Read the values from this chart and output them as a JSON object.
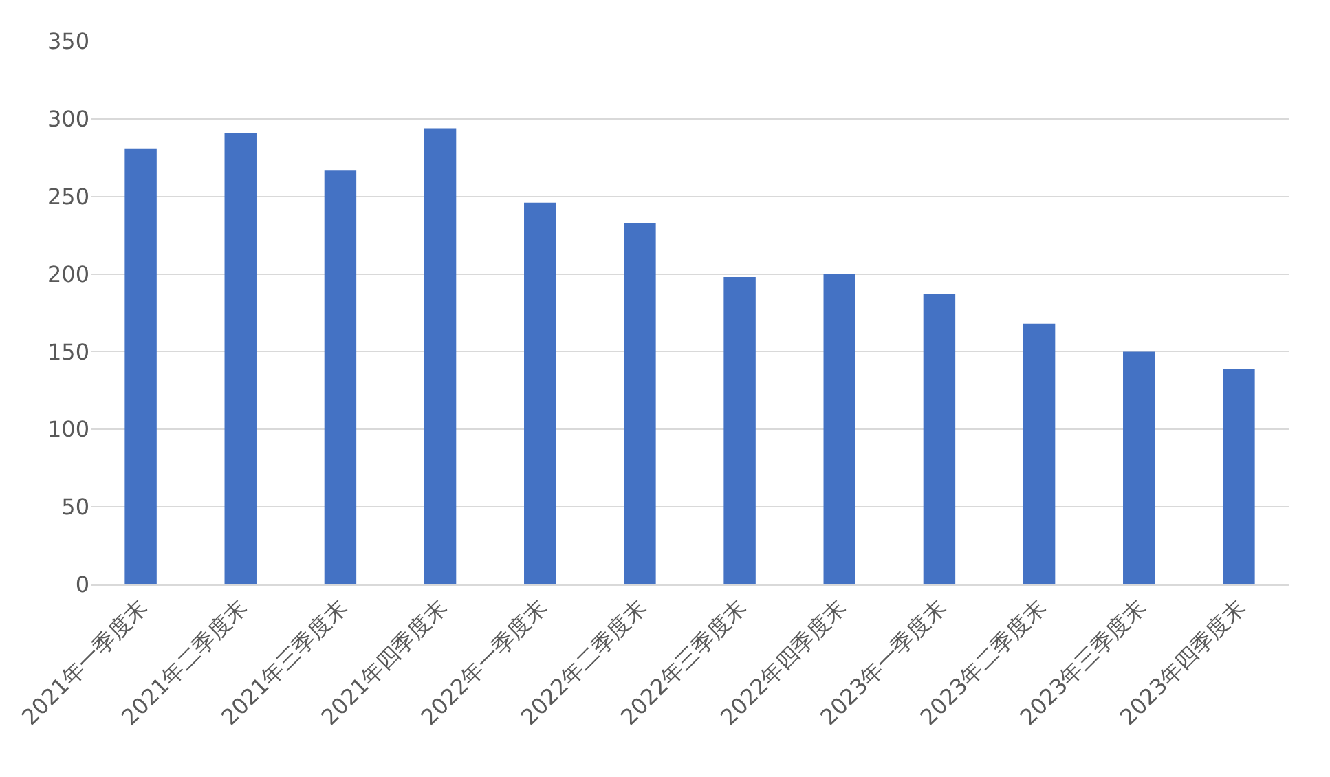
{
  "chart_data": {
    "type": "bar",
    "categories": [
      "2021年一季度末",
      "2021年二季度末",
      "2021年三季度末",
      "2021年四季度末",
      "2022年一季度末",
      "2022年二季度末",
      "2022年三季度末",
      "2022年四季度末",
      "2023年一季度末",
      "2023年二季度末",
      "2023年三季度末",
      "2023年四季度末"
    ],
    "values": [
      281,
      291,
      267,
      294,
      246,
      233,
      198,
      200,
      187,
      168,
      150,
      139
    ],
    "color": "#4472c4",
    "ylim": [
      0,
      350
    ],
    "yticks": [
      0,
      50,
      100,
      150,
      200,
      250,
      300,
      350
    ],
    "grid": "y"
  }
}
